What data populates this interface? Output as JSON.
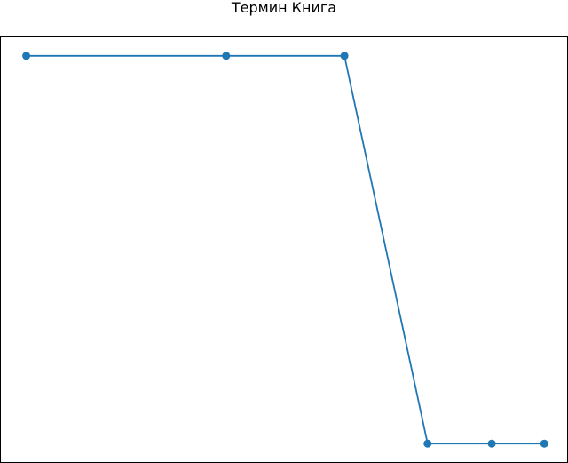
{
  "chart_data": {
    "type": "line",
    "title": "Термин Книга",
    "xlabel": "",
    "ylabel": "",
    "x": [
      0,
      3.8,
      6.05,
      7.63,
      8.85,
      9.85
    ],
    "series": [
      {
        "values": [
          1,
          1,
          1,
          0,
          0,
          0
        ],
        "color": "#1f77b4"
      }
    ],
    "xlim": [
      -0.5,
      10.3
    ],
    "ylim": [
      -0.05,
      1.05
    ],
    "grid": false,
    "markers": "circle"
  }
}
